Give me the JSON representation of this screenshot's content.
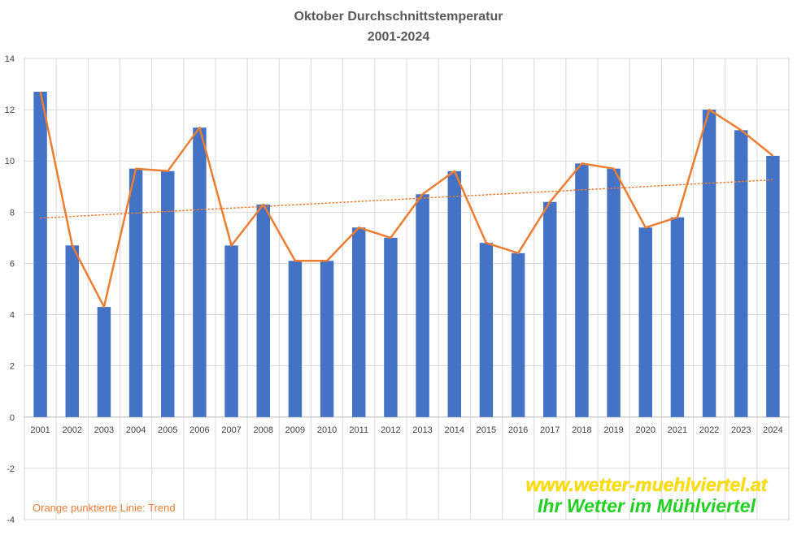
{
  "chart_data": {
    "type": "bar",
    "title": "Oktober Durchschnittstemperatur",
    "subtitle": "2001-2024",
    "categories": [
      "2001",
      "2002",
      "2003",
      "2004",
      "2005",
      "2006",
      "2007",
      "2008",
      "2009",
      "2010",
      "2011",
      "2012",
      "2013",
      "2014",
      "2015",
      "2016",
      "2017",
      "2018",
      "2019",
      "2020",
      "2021",
      "2022",
      "2023",
      "2024"
    ],
    "series": [
      {
        "type": "bar",
        "color": "#4472C4",
        "values": [
          12.7,
          6.7,
          4.3,
          9.7,
          9.6,
          11.3,
          6.7,
          8.3,
          6.1,
          6.1,
          7.4,
          7.0,
          8.7,
          9.6,
          6.8,
          6.4,
          8.4,
          9.9,
          9.7,
          7.4,
          7.8,
          12.0,
          11.2,
          10.2
        ]
      },
      {
        "type": "line",
        "color": "#ED7D31",
        "values": [
          12.7,
          6.7,
          4.3,
          9.7,
          9.6,
          11.3,
          6.7,
          8.3,
          6.1,
          6.1,
          7.4,
          7.0,
          8.7,
          9.6,
          6.8,
          6.4,
          8.4,
          9.9,
          9.7,
          7.4,
          7.8,
          12.0,
          11.2,
          10.2
        ]
      },
      {
        "type": "trendline",
        "style": "dotted",
        "color": "#ED7D31",
        "start": 7.77,
        "end": 9.26
      }
    ],
    "y_ticks": [
      "14",
      "12",
      "10",
      "8",
      "6",
      "4",
      "2",
      "0",
      "-2",
      "-4"
    ],
    "ylim": [
      -4,
      14
    ],
    "grid": true,
    "annotation": "Orange punktierte Linie: Trend"
  },
  "watermark": {
    "line1": "www.wetter-muehlviertel.at",
    "line2": "Ihr Wetter im Mühlviertel",
    "color1": "#FFE000",
    "color2": "#22D022"
  }
}
